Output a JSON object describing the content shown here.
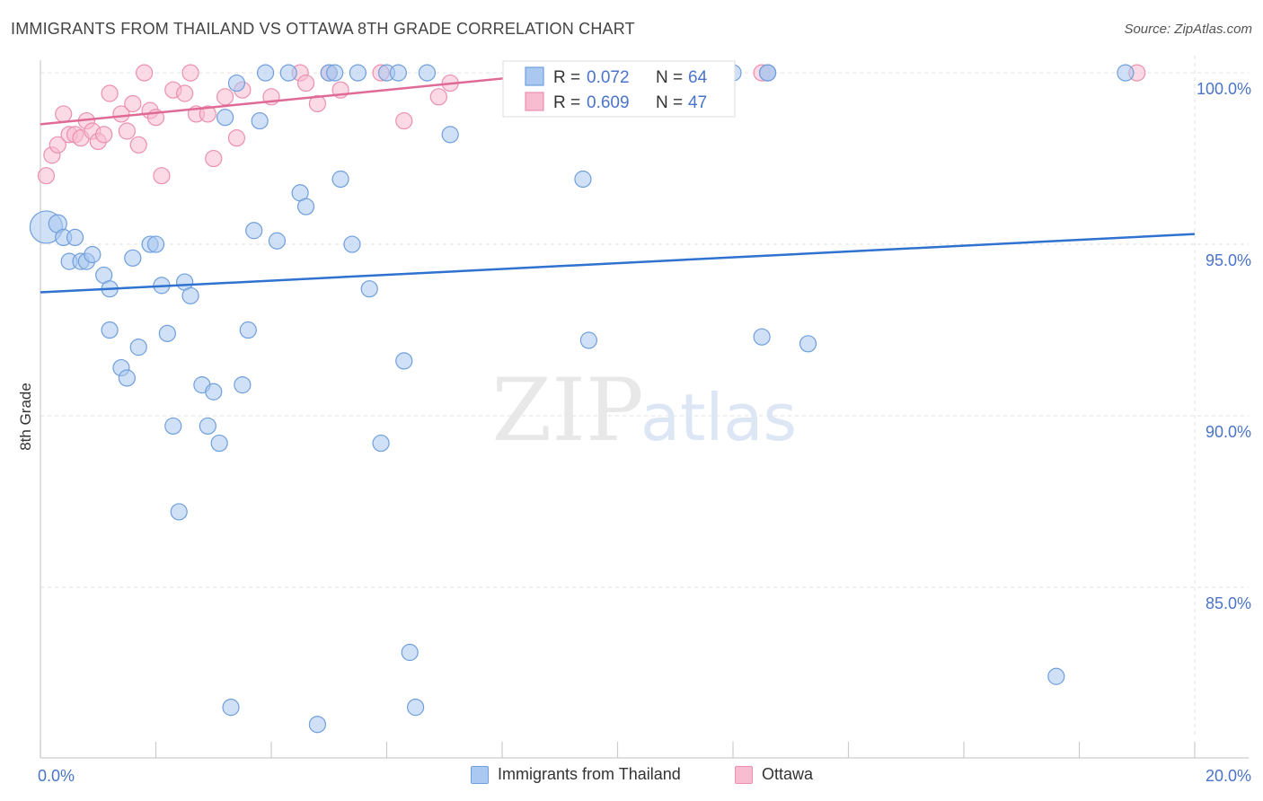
{
  "title": "IMMIGRANTS FROM THAILAND VS OTTAWA 8TH GRADE CORRELATION CHART",
  "source": "Source: ZipAtlas.com",
  "watermark": {
    "zip": "ZIP",
    "atlas": "atlas"
  },
  "colors": {
    "blue_fill": "#aac8f0",
    "blue_stroke": "#6f9fdc",
    "blue_line": "#2f72d0",
    "pink_fill": "#f8bcd0",
    "pink_stroke": "#ec8fb0",
    "pink_line": "#e06a96",
    "grid": "#e2e2e2",
    "tick_label": "#4a74c9"
  },
  "legend": {
    "rows": [
      {
        "r_label": "R = ",
        "r_value": "0.072",
        "n_label": "N = ",
        "n_value": "64"
      },
      {
        "r_label": "R = ",
        "r_value": "0.609",
        "n_label": "N = ",
        "n_value": "47"
      }
    ]
  },
  "chart_data": {
    "type": "scatter",
    "title": "IMMIGRANTS FROM THAILAND VS OTTAWA 8TH GRADE CORRELATION CHART",
    "xlabel": "",
    "ylabel": "8th Grade",
    "xlim": [
      0,
      20
    ],
    "ylim": [
      80.6,
      100.5
    ],
    "x_tick_labels": [
      {
        "value": 0,
        "label": "0.0%"
      },
      {
        "value": 20,
        "label": "20.0%"
      }
    ],
    "y_tick_labels": [
      {
        "value": 100,
        "label": "100.0%"
      },
      {
        "value": 95,
        "label": "95.0%"
      },
      {
        "value": 90,
        "label": "90.0%"
      },
      {
        "value": 85,
        "label": "85.0%"
      }
    ],
    "x_minor_ticks": [
      0,
      2,
      4,
      6,
      8,
      10,
      12,
      14,
      16,
      18,
      20
    ],
    "grid": true,
    "legend_position": "top-center",
    "series": [
      {
        "name": "Immigrants from Thailand",
        "color": "blue",
        "r": 0.072,
        "n": 64,
        "trend": {
          "x": [
            0,
            20
          ],
          "y": [
            93.6,
            95.3
          ]
        },
        "points": [
          [
            0.1,
            95.5,
            18
          ],
          [
            0.3,
            95.6,
            10
          ],
          [
            0.4,
            95.2,
            9
          ],
          [
            0.5,
            94.5,
            9
          ],
          [
            0.6,
            95.2,
            9
          ],
          [
            0.7,
            94.5,
            9
          ],
          [
            0.8,
            94.5,
            9
          ],
          [
            0.9,
            94.7,
            9
          ],
          [
            1.1,
            94.1,
            9
          ],
          [
            1.2,
            93.7,
            9
          ],
          [
            1.2,
            92.5,
            9
          ],
          [
            1.4,
            91.4,
            9
          ],
          [
            1.5,
            91.1,
            9
          ],
          [
            1.6,
            94.6,
            9
          ],
          [
            1.7,
            92.0,
            9
          ],
          [
            1.9,
            95.0,
            9
          ],
          [
            2.0,
            95.0,
            9
          ],
          [
            2.1,
            93.8,
            9
          ],
          [
            2.2,
            92.4,
            9
          ],
          [
            2.3,
            89.7,
            9
          ],
          [
            2.4,
            87.2,
            9
          ],
          [
            2.5,
            93.9,
            9
          ],
          [
            2.6,
            93.5,
            9
          ],
          [
            2.8,
            90.9,
            9
          ],
          [
            2.9,
            89.7,
            9
          ],
          [
            3.0,
            90.7,
            9
          ],
          [
            3.1,
            89.2,
            9
          ],
          [
            3.2,
            98.7,
            9
          ],
          [
            3.3,
            81.5,
            9
          ],
          [
            3.4,
            99.7,
            9
          ],
          [
            3.5,
            90.9,
            9
          ],
          [
            3.6,
            92.5,
            9
          ],
          [
            3.7,
            95.4,
            9
          ],
          [
            3.8,
            98.6,
            9
          ],
          [
            3.9,
            100.0,
            9
          ],
          [
            4.1,
            95.1,
            9
          ],
          [
            4.3,
            100.0,
            9
          ],
          [
            4.5,
            96.5,
            9
          ],
          [
            4.6,
            96.1,
            9
          ],
          [
            4.8,
            81.0,
            9
          ],
          [
            5.0,
            100.0,
            9
          ],
          [
            5.1,
            100.0,
            9
          ],
          [
            5.2,
            96.9,
            9
          ],
          [
            5.4,
            95.0,
            9
          ],
          [
            5.5,
            100.0,
            9
          ],
          [
            5.7,
            93.7,
            9
          ],
          [
            5.9,
            89.2,
            9
          ],
          [
            6.0,
            100.0,
            9
          ],
          [
            6.2,
            100.0,
            9
          ],
          [
            6.3,
            91.6,
            9
          ],
          [
            6.4,
            83.1,
            9
          ],
          [
            6.5,
            81.5,
            9
          ],
          [
            6.7,
            100.0,
            9
          ],
          [
            7.1,
            98.2,
            9
          ],
          [
            9.4,
            99.2,
            9
          ],
          [
            9.4,
            96.9,
            9
          ],
          [
            9.5,
            92.2,
            9
          ],
          [
            12.0,
            100.0,
            9
          ],
          [
            12.5,
            92.3,
            9
          ],
          [
            12.6,
            100.0,
            9
          ],
          [
            13.3,
            92.1,
            9
          ],
          [
            17.6,
            82.4,
            9
          ],
          [
            18.8,
            100.0,
            9
          ],
          [
            12.6,
            100.0,
            9
          ]
        ]
      },
      {
        "name": "Ottawa",
        "color": "pink",
        "r": 0.609,
        "n": 47,
        "trend": {
          "x": [
            0,
            10.8
          ],
          "y": [
            98.5,
            100.3
          ]
        },
        "points": [
          [
            0.1,
            97.0,
            9
          ],
          [
            0.2,
            97.6,
            9
          ],
          [
            0.3,
            97.9,
            9
          ],
          [
            0.4,
            98.8,
            9
          ],
          [
            0.5,
            98.2,
            9
          ],
          [
            0.6,
            98.2,
            9
          ],
          [
            0.7,
            98.1,
            9
          ],
          [
            0.8,
            98.6,
            9
          ],
          [
            0.9,
            98.3,
            9
          ],
          [
            1.0,
            98.0,
            9
          ],
          [
            1.1,
            98.2,
            9
          ],
          [
            1.2,
            99.4,
            9
          ],
          [
            1.4,
            98.8,
            9
          ],
          [
            1.5,
            98.3,
            9
          ],
          [
            1.6,
            99.1,
            9
          ],
          [
            1.7,
            97.9,
            9
          ],
          [
            1.8,
            100.0,
            9
          ],
          [
            1.9,
            98.9,
            9
          ],
          [
            2.0,
            98.7,
            9
          ],
          [
            2.1,
            97.0,
            9
          ],
          [
            2.3,
            99.5,
            9
          ],
          [
            2.5,
            99.4,
            9
          ],
          [
            2.6,
            100.0,
            9
          ],
          [
            2.7,
            98.8,
            9
          ],
          [
            2.9,
            98.8,
            9
          ],
          [
            3.0,
            97.5,
            9
          ],
          [
            3.2,
            99.3,
            9
          ],
          [
            3.4,
            98.1,
            9
          ],
          [
            3.5,
            99.5,
            9
          ],
          [
            4.0,
            99.3,
            9
          ],
          [
            4.5,
            100.0,
            9
          ],
          [
            4.6,
            99.7,
            9
          ],
          [
            4.8,
            99.1,
            9
          ],
          [
            5.0,
            100.0,
            9
          ],
          [
            5.2,
            99.5,
            9
          ],
          [
            5.9,
            100.0,
            9
          ],
          [
            6.3,
            98.6,
            9
          ],
          [
            6.9,
            99.3,
            9
          ],
          [
            7.1,
            99.7,
            9
          ],
          [
            8.2,
            100.0,
            9
          ],
          [
            9.0,
            100.0,
            9
          ],
          [
            9.6,
            100.0,
            9
          ],
          [
            11.1,
            100.0,
            9
          ],
          [
            11.8,
            100.0,
            9
          ],
          [
            12.5,
            100.0,
            9
          ],
          [
            12.6,
            100.0,
            9
          ],
          [
            19.0,
            100.0,
            9
          ]
        ]
      }
    ]
  }
}
